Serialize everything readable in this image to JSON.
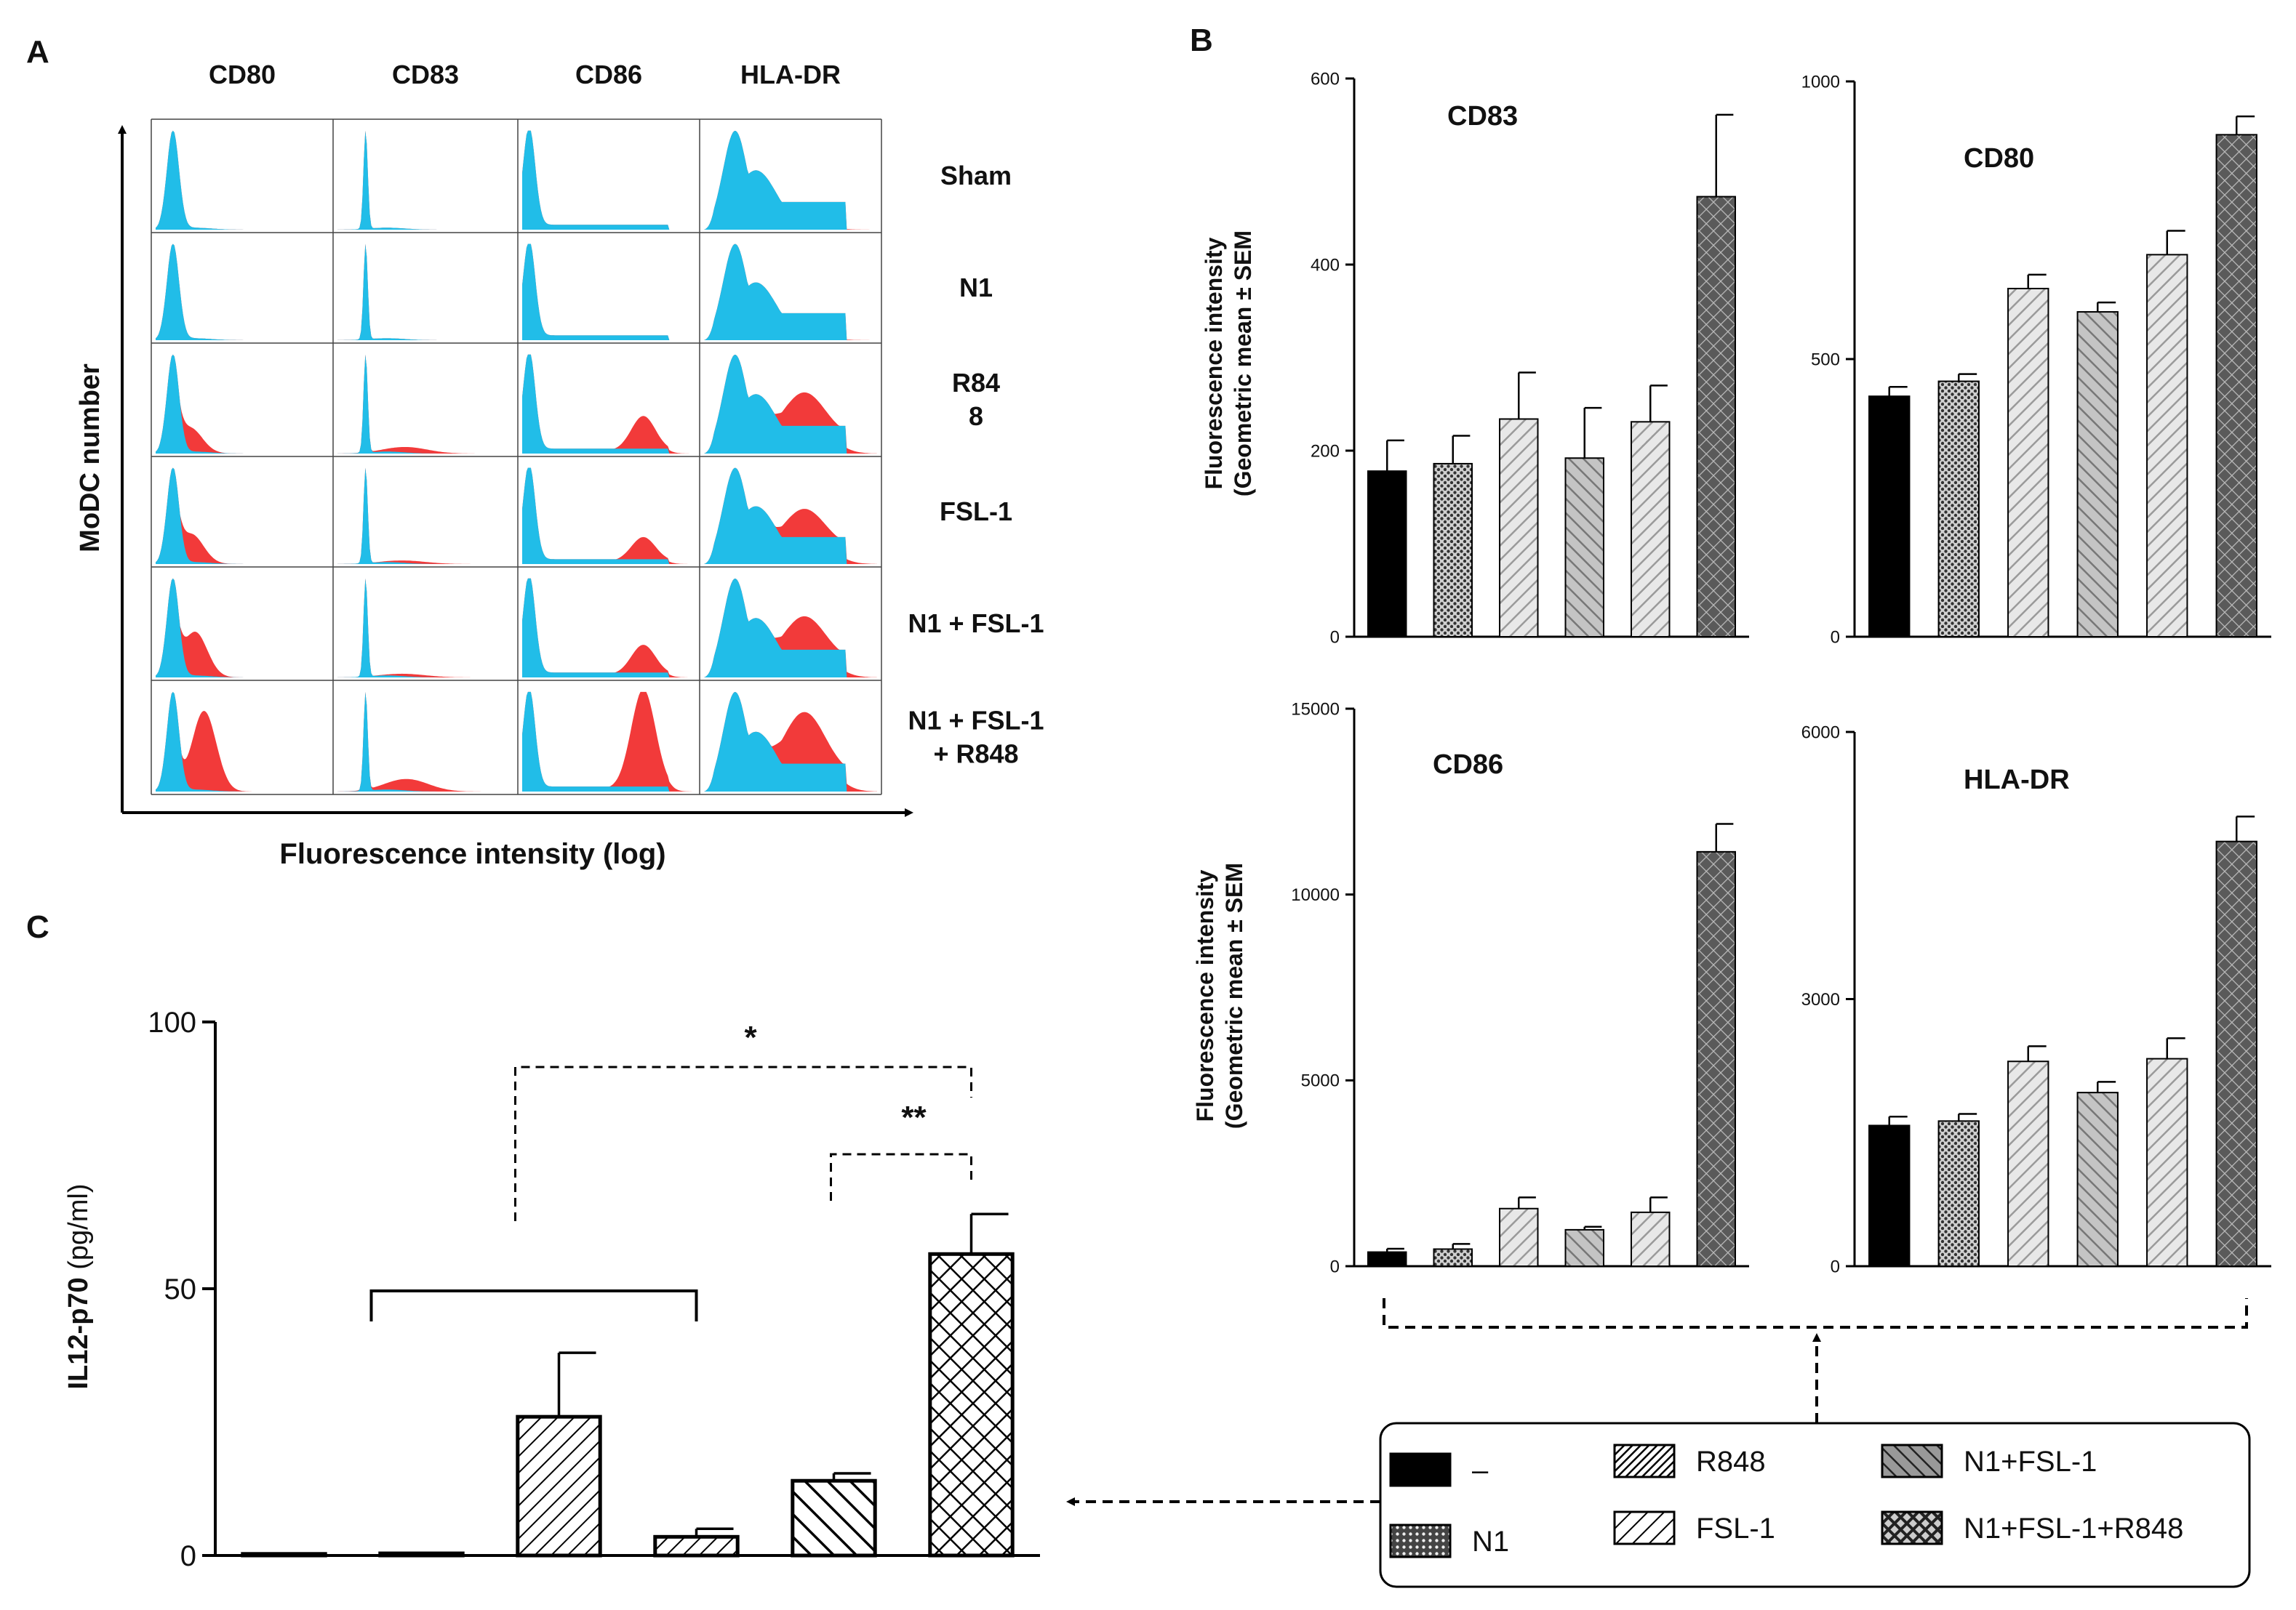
{
  "panel_labels": {
    "a": "A",
    "b": "B",
    "c": "C"
  },
  "colors": {
    "unstimulated": "#21bde8",
    "stimulated": "#f23a3a",
    "bar_solid": "#000000",
    "axis": "#000000"
  },
  "panel_a": {
    "columns": [
      "CD80",
      "CD83",
      "CD86",
      "HLA-DR"
    ],
    "rows": [
      {
        "label_lines": [
          "Sham"
        ]
      },
      {
        "label_lines": [
          "N1"
        ]
      },
      {
        "label_lines": [
          "R84",
          "8"
        ]
      },
      {
        "label_lines": [
          "FSL-1"
        ]
      },
      {
        "label_lines": [
          "N1 + FSL-1"
        ]
      },
      {
        "label_lines": [
          "N1 + FSL-1",
          "+ R848"
        ]
      }
    ],
    "y_axis_label": "MoDC number",
    "x_axis_label": "Fluorescence intensity (log)"
  },
  "chart_data": [
    {
      "id": "cd83",
      "type": "bar",
      "title": "CD83",
      "ylabel_lines": [
        "Fluorescence intensity",
        "(Geometric mean ± SEM"
      ],
      "ylim": [
        0,
        600
      ],
      "yticks": [
        0,
        200,
        400,
        600
      ],
      "categories": [
        "–",
        "N1",
        "R848",
        "FSL-1",
        "N1+FSL-1",
        "N1+FSL-1+R848"
      ],
      "values": [
        178,
        186,
        234,
        192,
        231,
        473
      ],
      "errors": [
        33,
        30,
        50,
        54,
        39,
        88
      ]
    },
    {
      "id": "cd80",
      "type": "bar",
      "title": "CD80",
      "ylim": [
        0,
        1000
      ],
      "yticks": [
        0,
        500,
        1000
      ],
      "categories": [
        "–",
        "N1",
        "R848",
        "FSL-1",
        "N1+FSL-1",
        "N1+FSL-1+R848"
      ],
      "values": [
        433,
        460,
        627,
        585,
        688,
        904
      ],
      "errors": [
        17,
        13,
        25,
        17,
        43,
        33
      ]
    },
    {
      "id": "cd86",
      "type": "bar",
      "title": "CD86",
      "ylabel_lines": [
        "Fluorescence intensity",
        "(Geometric mean ± SEM"
      ],
      "ylim": [
        0,
        15000
      ],
      "yticks": [
        0,
        5000,
        10000,
        15000
      ],
      "categories": [
        "–",
        "N1",
        "R848",
        "FSL-1",
        "N1+FSL-1",
        "N1+FSL-1+R848"
      ],
      "values": [
        380,
        460,
        1550,
        980,
        1450,
        11150
      ],
      "errors": [
        90,
        140,
        300,
        80,
        400,
        750
      ]
    },
    {
      "id": "hladr",
      "type": "bar",
      "title": "HLA-DR",
      "ylim": [
        0,
        6000
      ],
      "yticks": [
        0,
        3000,
        6000
      ],
      "categories": [
        "–",
        "N1",
        "R848",
        "FSL-1",
        "N1+FSL-1",
        "N1+FSL-1+R848"
      ],
      "values": [
        1580,
        1630,
        2300,
        1950,
        2330,
        4770
      ],
      "errors": [
        100,
        80,
        170,
        120,
        230,
        280
      ]
    },
    {
      "id": "il12",
      "type": "bar",
      "ylabel_bold": "IL12-p70",
      "ylabel_unit": " (pg/ml)",
      "ylim": [
        0,
        100
      ],
      "yticks": [
        0,
        50,
        100
      ],
      "categories": [
        "–",
        "N1",
        "R848",
        "FSL-1",
        "N1+FSL-1",
        "N1+FSL-1+R848"
      ],
      "values": [
        0.3,
        0.4,
        26,
        3.5,
        14,
        56.5
      ],
      "errors": [
        0,
        0,
        12,
        1.5,
        1.4,
        7.5
      ],
      "significance": [
        "*",
        "**"
      ]
    }
  ],
  "legend": {
    "items": [
      {
        "label": "–",
        "pattern": "solid"
      },
      {
        "label": "N1",
        "pattern": "dots"
      },
      {
        "label": "R848",
        "pattern": "dense"
      },
      {
        "label": "FSL-1",
        "pattern": "hatch"
      },
      {
        "label": "N1+FSL-1",
        "pattern": "back"
      },
      {
        "label": "N1+FSL-1+R848",
        "pattern": "cross"
      }
    ]
  }
}
